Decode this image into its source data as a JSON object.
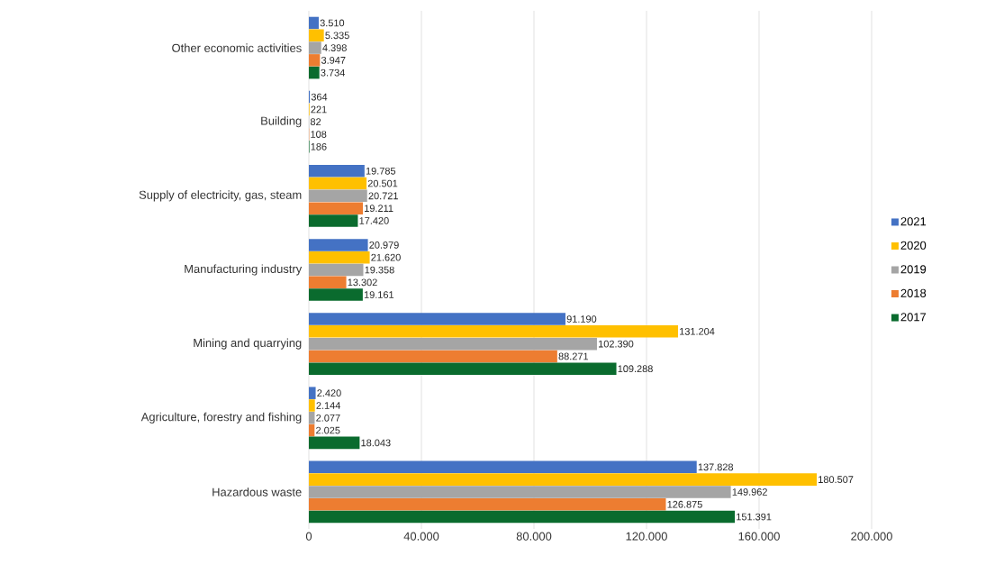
{
  "chart_data": {
    "type": "bar",
    "orientation": "horizontal",
    "categories": [
      "Other economic activities",
      "Building",
      "Supply of electricity, gas, steam",
      "Manufacturing industry",
      "Mining and quarrying",
      "Agriculture, forestry and fishing",
      "Hazardous waste"
    ],
    "series": [
      {
        "name": "2021",
        "color": "#4472c4",
        "values": [
          3510,
          364,
          19785,
          20979,
          91190,
          2420,
          137828
        ],
        "value_labels": [
          "3.510",
          "364",
          "19.785",
          "20.979",
          "91.190",
          "2.420",
          "137.828"
        ]
      },
      {
        "name": "2020",
        "color": "#ffc000",
        "values": [
          5335,
          221,
          20501,
          21620,
          131204,
          2144,
          180507
        ],
        "value_labels": [
          "5.335",
          "221",
          "20.501",
          "21.620",
          "131.204",
          "2.144",
          "180.507"
        ]
      },
      {
        "name": "2019",
        "color": "#a5a5a5",
        "values": [
          4398,
          82,
          20721,
          19358,
          102390,
          2077,
          149962
        ],
        "value_labels": [
          "4.398",
          "82",
          "20.721",
          "19.358",
          "102.390",
          "2.077",
          "149.962"
        ]
      },
      {
        "name": "2018",
        "color": "#ed7d31",
        "values": [
          3947,
          108,
          19211,
          13302,
          88271,
          2025,
          126875
        ],
        "value_labels": [
          "3.947",
          "108",
          "19.211",
          "13.302",
          "88.271",
          "2.025",
          "126.875"
        ]
      },
      {
        "name": "2017",
        "color": "#0a6b2e",
        "values": [
          3734,
          186,
          17420,
          19161,
          109288,
          18043,
          151391
        ],
        "value_labels": [
          "3.734",
          "186",
          "17.420",
          "19.161",
          "109.288",
          "18.043",
          "151.391"
        ]
      }
    ],
    "xlim": [
      0,
      200000
    ],
    "xticks": [
      0,
      {
        "value": 40000,
        "label": "40.000"
      },
      {
        "value": 80000,
        "label": "80.000"
      },
      {
        "value": 120000,
        "label": "120.000"
      },
      {
        "value": 160000,
        "label": "160.000"
      },
      {
        "value": 200000,
        "label": "200.000"
      }
    ],
    "grid": "x",
    "legend": "right"
  }
}
